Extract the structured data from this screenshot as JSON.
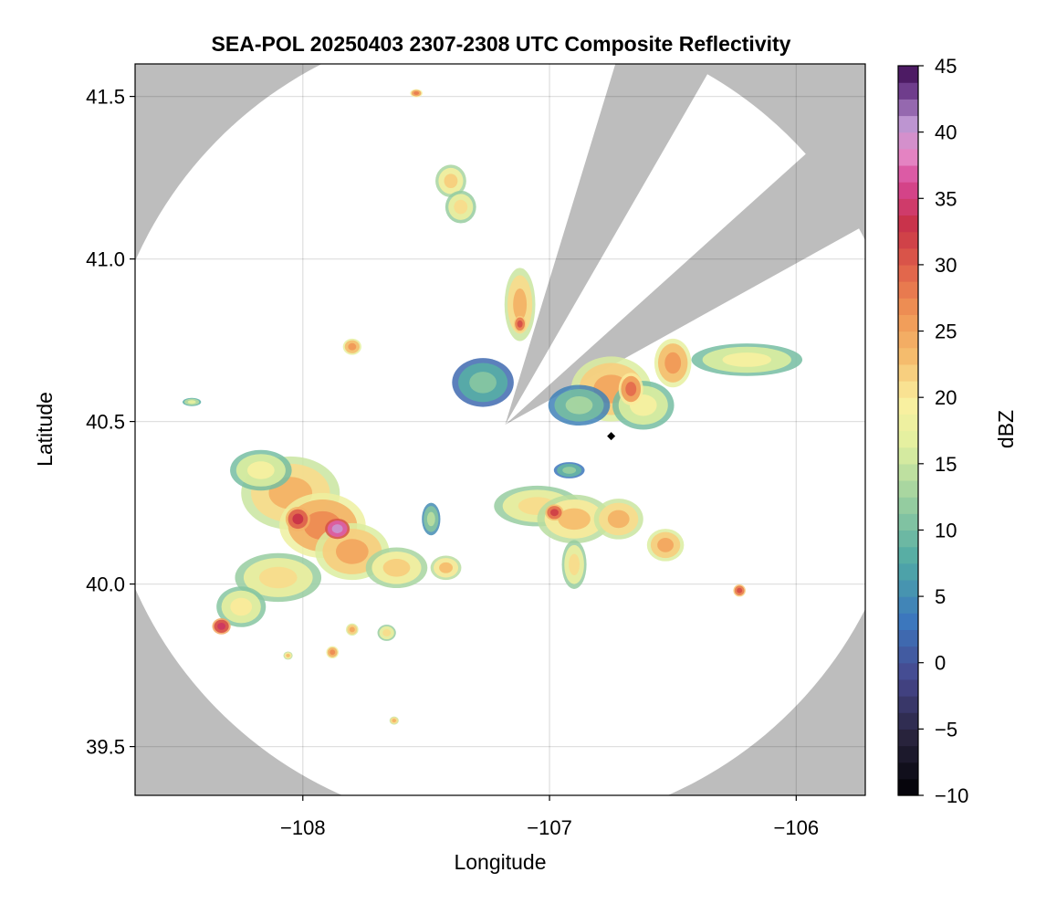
{
  "chart_data": {
    "type": "heatmap",
    "title": "SEA-POL 20250403 2307-2308 UTC Composite Reflectivity",
    "xlabel": "Longitude",
    "ylabel": "Latitude",
    "xlim": [
      -108.68,
      -105.72
    ],
    "ylim": [
      39.35,
      41.6
    ],
    "x_ticks": [
      -108,
      -107,
      -106
    ],
    "x_tick_labels": [
      "−108",
      "−107",
      "−106"
    ],
    "y_ticks": [
      39.5,
      40.0,
      40.5,
      41.0,
      41.5
    ],
    "y_tick_labels": [
      "39.5",
      "40.0",
      "40.5",
      "41.0",
      "41.5"
    ],
    "grid": true,
    "radar_center": {
      "lon": -107.18,
      "lat": 40.49
    },
    "radar_max_range_deg_lon": 1.64,
    "blocked_sectors_azimuth_deg": [
      [
        17,
        30
      ],
      [
        48,
        61
      ]
    ],
    "colorbar": {
      "label": "dBZ",
      "range": [
        -10,
        45
      ],
      "ticks": [
        -10,
        -5,
        0,
        5,
        10,
        15,
        20,
        25,
        30,
        35,
        40,
        45
      ],
      "tick_labels": [
        "−10",
        "−5",
        "0",
        "5",
        "10",
        "15",
        "20",
        "25",
        "30",
        "35",
        "40",
        "45"
      ],
      "colormap": "Spectral_r",
      "levels": 44
    },
    "echo_cells": [
      {
        "lon": -108.05,
        "lat": 40.28,
        "rx": 0.16,
        "ry": 0.09,
        "dbz": 24
      },
      {
        "lon": -107.92,
        "lat": 40.18,
        "rx": 0.14,
        "ry": 0.08,
        "dbz": 27
      },
      {
        "lon": -107.8,
        "lat": 40.1,
        "rx": 0.12,
        "ry": 0.07,
        "dbz": 25
      },
      {
        "lon": -107.62,
        "lat": 40.05,
        "rx": 0.1,
        "ry": 0.05,
        "dbz": 22
      },
      {
        "lon": -108.17,
        "lat": 40.35,
        "rx": 0.1,
        "ry": 0.05,
        "dbz": 19
      },
      {
        "lon": -108.1,
        "lat": 40.02,
        "rx": 0.14,
        "ry": 0.06,
        "dbz": 21
      },
      {
        "lon": -108.25,
        "lat": 39.93,
        "rx": 0.08,
        "ry": 0.05,
        "dbz": 20
      },
      {
        "lon": -108.02,
        "lat": 40.2,
        "rx": 0.04,
        "ry": 0.03,
        "dbz": 33
      },
      {
        "lon": -107.86,
        "lat": 40.17,
        "rx": 0.04,
        "ry": 0.025,
        "dbz": 40
      },
      {
        "lon": -108.33,
        "lat": 39.87,
        "rx": 0.03,
        "ry": 0.02,
        "dbz": 34
      },
      {
        "lon": -107.42,
        "lat": 40.05,
        "rx": 0.05,
        "ry": 0.03,
        "dbz": 23
      },
      {
        "lon": -107.8,
        "lat": 40.73,
        "rx": 0.03,
        "ry": 0.02,
        "dbz": 26
      },
      {
        "lon": -107.4,
        "lat": 41.24,
        "rx": 0.05,
        "ry": 0.04,
        "dbz": 22
      },
      {
        "lon": -107.36,
        "lat": 41.16,
        "rx": 0.05,
        "ry": 0.04,
        "dbz": 21
      },
      {
        "lon": -107.12,
        "lat": 40.86,
        "rx": 0.05,
        "ry": 0.09,
        "dbz": 24
      },
      {
        "lon": -107.12,
        "lat": 40.8,
        "rx": 0.02,
        "ry": 0.02,
        "dbz": 31
      },
      {
        "lon": -107.27,
        "lat": 40.62,
        "rx": 0.1,
        "ry": 0.06,
        "dbz": 11
      },
      {
        "lon": -106.75,
        "lat": 40.6,
        "rx": 0.13,
        "ry": 0.08,
        "dbz": 25
      },
      {
        "lon": -106.62,
        "lat": 40.55,
        "rx": 0.1,
        "ry": 0.06,
        "dbz": 19
      },
      {
        "lon": -106.88,
        "lat": 40.55,
        "rx": 0.1,
        "ry": 0.05,
        "dbz": 13
      },
      {
        "lon": -106.5,
        "lat": 40.68,
        "rx": 0.06,
        "ry": 0.06,
        "dbz": 26
      },
      {
        "lon": -106.67,
        "lat": 40.6,
        "rx": 0.04,
        "ry": 0.04,
        "dbz": 29
      },
      {
        "lon": -106.2,
        "lat": 40.69,
        "rx": 0.18,
        "ry": 0.04,
        "dbz": 19
      },
      {
        "lon": -106.92,
        "lat": 40.35,
        "rx": 0.05,
        "ry": 0.02,
        "dbz": 12
      },
      {
        "lon": -107.05,
        "lat": 40.24,
        "rx": 0.14,
        "ry": 0.05,
        "dbz": 21
      },
      {
        "lon": -106.9,
        "lat": 40.2,
        "rx": 0.12,
        "ry": 0.06,
        "dbz": 23
      },
      {
        "lon": -106.98,
        "lat": 40.22,
        "rx": 0.03,
        "ry": 0.02,
        "dbz": 32
      },
      {
        "lon": -106.72,
        "lat": 40.2,
        "rx": 0.08,
        "ry": 0.05,
        "dbz": 24
      },
      {
        "lon": -106.9,
        "lat": 40.06,
        "rx": 0.04,
        "ry": 0.06,
        "dbz": 21
      },
      {
        "lon": -106.53,
        "lat": 40.12,
        "rx": 0.06,
        "ry": 0.04,
        "dbz": 25
      },
      {
        "lon": -106.23,
        "lat": 39.98,
        "rx": 0.02,
        "ry": 0.015,
        "dbz": 31
      },
      {
        "lon": -107.54,
        "lat": 41.51,
        "rx": 0.02,
        "ry": 0.01,
        "dbz": 28
      },
      {
        "lon": -107.66,
        "lat": 39.85,
        "rx": 0.03,
        "ry": 0.02,
        "dbz": 21
      },
      {
        "lon": -107.88,
        "lat": 39.79,
        "rx": 0.02,
        "ry": 0.015,
        "dbz": 27
      },
      {
        "lon": -107.63,
        "lat": 39.58,
        "rx": 0.015,
        "ry": 0.01,
        "dbz": 24
      },
      {
        "lon": -107.48,
        "lat": 40.2,
        "rx": 0.03,
        "ry": 0.04,
        "dbz": 14
      },
      {
        "lon": -108.45,
        "lat": 40.56,
        "rx": 0.03,
        "ry": 0.01,
        "dbz": 17
      },
      {
        "lon": -107.8,
        "lat": 39.86,
        "rx": 0.02,
        "ry": 0.015,
        "dbz": 25
      },
      {
        "lon": -108.06,
        "lat": 39.78,
        "rx": 0.015,
        "ry": 0.01,
        "dbz": 23
      }
    ],
    "marker": {
      "lon": -106.75,
      "lat": 40.455,
      "shape": "diamond"
    }
  }
}
